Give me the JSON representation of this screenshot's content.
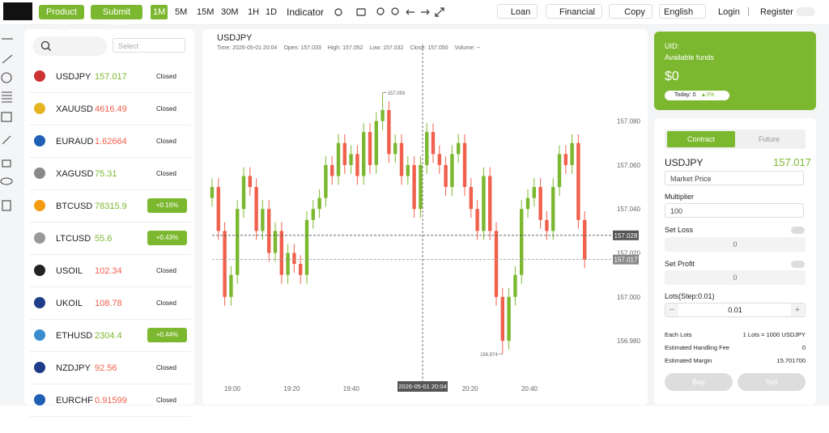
{
  "topbar": {
    "product_list": "Product List",
    "submit_order": "Submit Order",
    "intervals": [
      "1M",
      "5M",
      "15M",
      "30M",
      "1H",
      "1D"
    ],
    "active_interval": 0,
    "indicator": "Indicator",
    "loan": "Loan",
    "financial": "Financial",
    "copy": "Copy",
    "language": "English",
    "login": "Login",
    "separator": "|",
    "register": "Register"
  },
  "watchlist": {
    "select": "Select",
    "rows": [
      {
        "symbol": "USDJPY",
        "price": "157.017",
        "color": "#7cb82f",
        "status": "Closed"
      },
      {
        "symbol": "XAUUSD",
        "price": "4616.49",
        "color": "#f0604d",
        "status": "Closed"
      },
      {
        "symbol": "EURAUD",
        "price": "1.62664",
        "color": "#f0604d",
        "status": "Closed"
      },
      {
        "symbol": "XAGUSD",
        "price": "75.31",
        "color": "#7cb82f",
        "status": "Closed"
      },
      {
        "symbol": "BTCUSD",
        "price": "78315.9",
        "color": "#7cb82f",
        "change": "+0.16%"
      },
      {
        "symbol": "LTCUSD",
        "price": "55.6",
        "color": "#7cb82f",
        "change": "+0.43%"
      },
      {
        "symbol": "USOIL",
        "price": "102.34",
        "color": "#f0604d",
        "status": "Closed"
      },
      {
        "symbol": "UKOIL",
        "price": "108.78",
        "color": "#f0604d",
        "status": "Closed"
      },
      {
        "symbol": "ETHUSD",
        "price": "2304.4",
        "color": "#7cb82f",
        "change": "+0.44%"
      },
      {
        "symbol": "NZDJPY",
        "price": "92.56",
        "color": "#f0604d",
        "status": "Closed"
      },
      {
        "symbol": "EURCHF",
        "price": "0.91599",
        "color": "#f0604d",
        "status": "Closed"
      }
    ]
  },
  "chart": {
    "type": "candlestick",
    "symbol": "USDJPY",
    "info": [
      "Time: 2026-05-01 20:04",
      "Open: 157.033",
      "High: 157.052",
      "Low: 157.032",
      "Close: 157.050",
      "Volume: --"
    ],
    "up_color": "#7cb82f",
    "down_color": "#f0604d",
    "ylim": [
      156.962,
      157.113
    ],
    "yticks": [
      {
        "value": 157.08,
        "label": "157.080"
      },
      {
        "value": 157.06,
        "label": "157.060"
      },
      {
        "value": 157.04,
        "label": "157.040"
      },
      {
        "value": 157.02,
        "label": "157.020"
      },
      {
        "value": 157.0,
        "label": "157.000"
      },
      {
        "value": 156.98,
        "label": "156.980"
      }
    ],
    "xticks": [
      "19:00",
      "19:20",
      "19:40",
      "20:20",
      "20:40"
    ],
    "crosshair_time": "2026-05-01 20:04",
    "crosshair_price": {
      "value": 157.028,
      "label": "157.028"
    },
    "last_price": {
      "value": 157.017,
      "label": "157.017"
    },
    "max_label": {
      "value": 157.093,
      "label": "157.093",
      "index": 27
    },
    "min_label": {
      "value": 156.974,
      "label": "156.974",
      "index": 46
    },
    "candles": [
      [
        157.045,
        157.054,
        157.041,
        157.05
      ],
      [
        157.05,
        157.054,
        157.026,
        157.03
      ],
      [
        157.03,
        157.034,
        156.996,
        157.0
      ],
      [
        157.0,
        157.014,
        156.996,
        157.01
      ],
      [
        157.01,
        157.044,
        157.006,
        157.04
      ],
      [
        157.04,
        157.059,
        157.036,
        157.055
      ],
      [
        157.055,
        157.059,
        157.046,
        157.05
      ],
      [
        157.05,
        157.054,
        157.026,
        157.03
      ],
      [
        157.03,
        157.044,
        157.026,
        157.04
      ],
      [
        157.04,
        157.044,
        157.016,
        157.02
      ],
      [
        157.02,
        157.034,
        157.016,
        157.03
      ],
      [
        157.03,
        157.034,
        157.006,
        157.01
      ],
      [
        157.01,
        157.024,
        157.006,
        157.02
      ],
      [
        157.02,
        157.024,
        157.011,
        157.015
      ],
      [
        157.015,
        157.019,
        157.006,
        157.01
      ],
      [
        157.01,
        157.039,
        157.006,
        157.035
      ],
      [
        157.035,
        157.044,
        157.031,
        157.04
      ],
      [
        157.04,
        157.049,
        157.036,
        157.045
      ],
      [
        157.045,
        157.064,
        157.041,
        157.06
      ],
      [
        157.06,
        157.064,
        157.051,
        157.055
      ],
      [
        157.055,
        157.074,
        157.051,
        157.07
      ],
      [
        157.07,
        157.074,
        157.056,
        157.06
      ],
      [
        157.06,
        157.069,
        157.056,
        157.065
      ],
      [
        157.065,
        157.069,
        157.051,
        157.055
      ],
      [
        157.055,
        157.079,
        157.051,
        157.075
      ],
      [
        157.075,
        157.079,
        157.056,
        157.06
      ],
      [
        157.06,
        157.084,
        157.056,
        157.08
      ],
      [
        157.08,
        157.093,
        157.076,
        157.085
      ],
      [
        157.085,
        157.089,
        157.061,
        157.065
      ],
      [
        157.065,
        157.074,
        157.061,
        157.07
      ],
      [
        157.07,
        157.074,
        157.051,
        157.055
      ],
      [
        157.055,
        157.064,
        157.051,
        157.06
      ],
      [
        157.06,
        157.064,
        157.036,
        157.04
      ],
      [
        157.04,
        157.064,
        157.036,
        157.06
      ],
      [
        157.06,
        157.079,
        157.056,
        157.075
      ],
      [
        157.075,
        157.079,
        157.061,
        157.065
      ],
      [
        157.065,
        157.069,
        157.056,
        157.06
      ],
      [
        157.06,
        157.064,
        157.046,
        157.05
      ],
      [
        157.05,
        157.069,
        157.046,
        157.065
      ],
      [
        157.065,
        157.074,
        157.061,
        157.07
      ],
      [
        157.07,
        157.074,
        157.046,
        157.05
      ],
      [
        157.05,
        157.054,
        157.036,
        157.04
      ],
      [
        157.04,
        157.044,
        157.026,
        157.03
      ],
      [
        157.03,
        157.059,
        157.026,
        157.055
      ],
      [
        157.055,
        157.059,
        157.026,
        157.03
      ],
      [
        157.03,
        157.034,
        156.996,
        157.0
      ],
      [
        157.0,
        157.004,
        156.974,
        156.98
      ],
      [
        156.98,
        157.004,
        156.976,
        157.0
      ],
      [
        157.0,
        157.014,
        156.996,
        157.01
      ],
      [
        157.01,
        157.044,
        157.006,
        157.04
      ],
      [
        157.04,
        157.049,
        157.036,
        157.045
      ],
      [
        157.045,
        157.054,
        157.041,
        157.05
      ],
      [
        157.05,
        157.054,
        157.031,
        157.035
      ],
      [
        157.035,
        157.039,
        157.026,
        157.03
      ],
      [
        157.03,
        157.054,
        157.026,
        157.05
      ],
      [
        157.05,
        157.069,
        157.046,
        157.065
      ],
      [
        157.065,
        157.069,
        157.056,
        157.06
      ],
      [
        157.06,
        157.074,
        157.056,
        157.07
      ],
      [
        157.07,
        157.074,
        157.031,
        157.035
      ],
      [
        157.035,
        157.039,
        157.013,
        157.017
      ]
    ]
  },
  "account": {
    "uid": "UID:",
    "available": "Available funds",
    "amount": "$0",
    "today": "Today: 0",
    "today_change": "0%"
  },
  "order": {
    "tabs": [
      "Contract",
      "Future"
    ],
    "symbol": "USDJPY",
    "price": "157.017",
    "price_type": "Market Price",
    "multiplier_label": "Multiplier",
    "multiplier": "100",
    "set_loss": "Set Loss",
    "loss_value": "0",
    "set_profit": "Set Profit",
    "profit_value": "0",
    "lots_label": "Lots(Step:0.01)",
    "minus": "−",
    "lots": "0.01",
    "plus": "+",
    "rows": [
      [
        "Each Lots",
        "1 Lots = 1000 USDJPY"
      ],
      [
        "Estimated Handling Fee",
        "0"
      ],
      [
        "Estimated Margin",
        "15.701700"
      ]
    ],
    "buy": "Buy",
    "sell": "Sell"
  }
}
